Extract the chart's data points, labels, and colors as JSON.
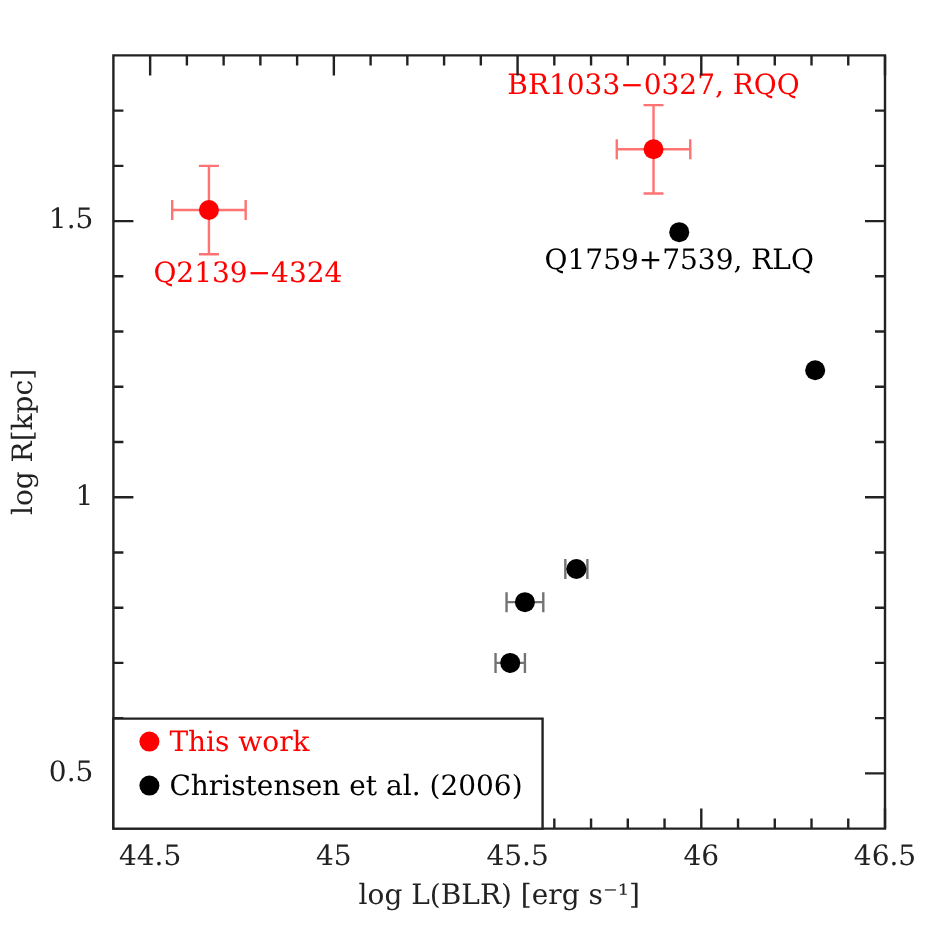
{
  "chart_data": {
    "type": "scatter",
    "xlabel": "log L(BLR) [erg s⁻¹]",
    "ylabel": "log R[kpc]",
    "series": [
      {
        "name": "This work",
        "color": "#ff0000",
        "x": [
          44.66,
          45.87
        ],
        "values": [
          1.52,
          1.63
        ],
        "errors": [
          0.08,
          0.08
        ],
        "xerrors": [
          0.1,
          0.1
        ]
      },
      {
        "name": "Christensen et al. (2006)",
        "color": "#000000",
        "x": [
          45.48,
          45.52,
          45.66,
          45.94,
          46.31
        ],
        "values": [
          0.7,
          0.81,
          0.87,
          1.48,
          1.23
        ],
        "xerrors": [
          0.04,
          0.05,
          0.03,
          null,
          null
        ]
      }
    ],
    "xlim": [
      44.4,
      46.5
    ],
    "ylim": [
      0.4,
      1.8
    ],
    "xticks": [
      44.5,
      {
        "value": 44.6,
        "label": null
      },
      {
        "value": 44.7,
        "label": null
      },
      {
        "value": 44.8,
        "label": null
      },
      {
        "value": 44.9,
        "label": null
      },
      45,
      {
        "value": 45.1,
        "label": null
      },
      {
        "value": 45.2,
        "label": null
      },
      {
        "value": 45.3,
        "label": null
      },
      {
        "value": 45.4,
        "label": null
      },
      45.5,
      {
        "value": 45.6,
        "label": null
      },
      {
        "value": 45.7,
        "label": null
      },
      {
        "value": 45.8,
        "label": null
      },
      {
        "value": 45.9,
        "label": null
      },
      46,
      {
        "value": 46.1,
        "label": null
      },
      {
        "value": 46.2,
        "label": null
      },
      {
        "value": 46.3,
        "label": null
      },
      {
        "value": 46.4,
        "label": null
      },
      46.5
    ],
    "yticks": [
      0.5,
      {
        "value": 0.6,
        "label": null
      },
      {
        "value": 0.7,
        "label": null
      },
      {
        "value": 0.8,
        "label": null
      },
      {
        "value": 0.9,
        "label": null
      },
      1,
      {
        "value": 1.1,
        "label": null
      },
      {
        "value": 1.2,
        "label": null
      },
      {
        "value": 1.3,
        "label": null
      },
      {
        "value": 1.4,
        "label": null
      },
      1.5,
      {
        "value": 1.6,
        "label": null
      },
      {
        "value": 1.7,
        "label": null
      }
    ],
    "marker": "circle",
    "legend": "bottom left",
    "annotations": [
      {
        "text": "Q2139−4324",
        "x": 44.66,
        "y": 1.52
      },
      {
        "text": "BR1033−0327, RQQ",
        "x": 45.87,
        "y": 1.63
      },
      {
        "text": "Q1759+7539, RLQ",
        "x": 45.94,
        "y": 1.48
      }
    ]
  }
}
